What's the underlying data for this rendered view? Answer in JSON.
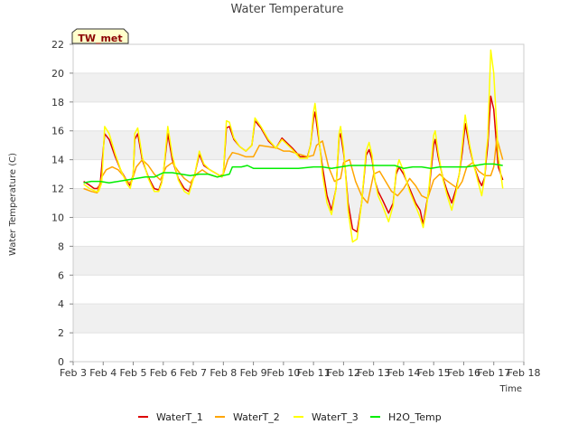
{
  "chart_data": {
    "type": "line",
    "title": "Water Temperature",
    "xlabel": "Time",
    "ylabel": "Water Temperature (C)",
    "site_label": "TW_met",
    "xlim": [
      3,
      18
    ],
    "ylim": [
      0,
      22
    ],
    "x_ticks": [
      3,
      4,
      5,
      6,
      7,
      8,
      9,
      10,
      11,
      12,
      13,
      14,
      15,
      16,
      17,
      18
    ],
    "x_tick_labels": [
      "Feb 3",
      "Feb 4",
      "Feb 5",
      "Feb 6",
      "Feb 7",
      "Feb 8",
      "Feb 9",
      "Feb 10",
      "Feb 11",
      "Feb 12",
      "Feb 13",
      "Feb 14",
      "Feb 15",
      "Feb 16",
      "Feb 17",
      "Feb 18"
    ],
    "y_ticks": [
      0,
      2,
      4,
      6,
      8,
      10,
      12,
      14,
      16,
      18,
      20,
      22
    ],
    "y_tick_labels": [
      "0",
      "2",
      "4",
      "6",
      "8",
      "10",
      "12",
      "14",
      "16",
      "18",
      "20",
      "22"
    ],
    "grid": "horizontal bands",
    "legend_position": "bottom",
    "series": [
      {
        "name": "WaterT_1",
        "color": "#dd0000",
        "x": [
          3.35,
          3.5,
          3.7,
          3.8,
          3.9,
          4.05,
          4.2,
          4.4,
          4.6,
          4.8,
          4.9,
          5.0,
          5.05,
          5.15,
          5.3,
          5.5,
          5.7,
          5.85,
          5.95,
          6.0,
          6.15,
          6.3,
          6.5,
          6.7,
          6.85,
          7.05,
          7.2,
          7.35,
          7.55,
          7.8,
          7.95,
          8.0,
          8.1,
          8.2,
          8.35,
          8.55,
          8.75,
          8.95,
          9.05,
          9.25,
          9.5,
          9.75,
          9.95,
          10.05,
          10.3,
          10.55,
          10.8,
          10.9,
          11.0,
          11.05,
          11.15,
          11.3,
          11.45,
          11.6,
          11.75,
          11.85,
          11.9,
          12.0,
          12.05,
          12.15,
          12.3,
          12.45,
          12.6,
          12.75,
          12.85,
          12.95,
          13.05,
          13.15,
          13.3,
          13.5,
          13.65,
          13.75,
          13.85,
          14.0,
          14.2,
          14.4,
          14.55,
          14.65,
          14.75,
          14.85,
          15.0,
          15.05,
          15.15,
          15.3,
          15.45,
          15.6,
          15.75,
          15.85,
          15.95,
          16.05,
          16.2,
          16.35,
          16.5,
          16.6,
          16.7,
          16.75,
          16.8,
          16.9,
          17.0,
          17.15,
          17.3
        ],
        "values": [
          12.5,
          12.3,
          12.0,
          12.0,
          12.3,
          15.8,
          15.4,
          14.2,
          13.2,
          12.5,
          12.2,
          13.0,
          15.4,
          15.8,
          14.0,
          12.8,
          12.0,
          11.9,
          12.5,
          13.0,
          15.8,
          14.0,
          12.7,
          12.0,
          11.8,
          13.0,
          14.4,
          13.6,
          13.3,
          13.0,
          12.8,
          13.0,
          16.2,
          16.3,
          15.4,
          14.9,
          14.6,
          15.0,
          16.7,
          16.2,
          15.3,
          14.8,
          15.5,
          15.3,
          14.8,
          14.2,
          14.2,
          15.0,
          16.8,
          17.3,
          15.8,
          13.5,
          11.5,
          10.5,
          12.0,
          15.5,
          15.8,
          14.5,
          13.5,
          11.0,
          9.2,
          9.0,
          11.0,
          14.3,
          14.7,
          14.0,
          12.5,
          11.8,
          11.2,
          10.3,
          11.0,
          13.0,
          13.5,
          13.0,
          12.0,
          11.0,
          10.5,
          9.5,
          10.8,
          12.0,
          15.0,
          15.4,
          14.2,
          12.8,
          11.8,
          11.0,
          12.0,
          13.0,
          14.5,
          16.5,
          14.8,
          13.5,
          12.6,
          12.2,
          12.8,
          14.0,
          15.0,
          18.4,
          17.5,
          13.5,
          12.6
        ]
      },
      {
        "name": "WaterT_2",
        "color": "#ffa500",
        "x": [
          3.35,
          3.6,
          3.8,
          3.95,
          4.1,
          4.3,
          4.5,
          4.7,
          4.85,
          4.95,
          5.1,
          5.3,
          5.5,
          5.7,
          5.9,
          6.1,
          6.3,
          6.5,
          6.7,
          6.9,
          7.1,
          7.3,
          7.5,
          7.8,
          8.0,
          8.15,
          8.3,
          8.5,
          8.75,
          9.0,
          9.2,
          9.5,
          9.8,
          10.0,
          10.2,
          10.5,
          10.8,
          11.0,
          11.1,
          11.3,
          11.5,
          11.7,
          11.9,
          12.0,
          12.2,
          12.4,
          12.6,
          12.8,
          13.0,
          13.2,
          13.4,
          13.6,
          13.8,
          14.0,
          14.2,
          14.4,
          14.6,
          14.8,
          15.0,
          15.2,
          15.4,
          15.6,
          15.8,
          15.95,
          16.1,
          16.3,
          16.5,
          16.7,
          16.9,
          17.0,
          17.1,
          17.3
        ],
        "values": [
          12.0,
          11.8,
          11.7,
          12.8,
          13.3,
          13.5,
          13.3,
          12.8,
          12.4,
          12.5,
          13.5,
          14.0,
          13.6,
          13.0,
          12.6,
          13.5,
          13.8,
          13.2,
          12.7,
          12.4,
          13.0,
          13.3,
          13.0,
          12.8,
          13.0,
          14.0,
          14.5,
          14.4,
          14.2,
          14.2,
          15.0,
          14.9,
          14.8,
          14.6,
          14.6,
          14.4,
          14.2,
          14.3,
          15.0,
          15.3,
          13.5,
          12.5,
          12.7,
          13.8,
          14.0,
          12.5,
          11.5,
          11.0,
          13.0,
          13.2,
          12.5,
          11.8,
          11.5,
          12.0,
          12.7,
          12.2,
          11.5,
          11.3,
          12.6,
          13.0,
          12.6,
          12.3,
          12.0,
          12.5,
          13.5,
          13.8,
          13.2,
          12.9,
          12.9,
          13.5,
          15.5,
          14.0
        ]
      },
      {
        "name": "WaterT_3",
        "color": "#ffff00",
        "x": [
          3.35,
          3.55,
          3.75,
          3.85,
          3.95,
          4.05,
          4.2,
          4.4,
          4.6,
          4.8,
          4.9,
          5.0,
          5.05,
          5.15,
          5.3,
          5.5,
          5.7,
          5.85,
          5.95,
          6.0,
          6.15,
          6.3,
          6.5,
          6.7,
          6.85,
          7.05,
          7.2,
          7.35,
          7.55,
          7.8,
          7.95,
          8.0,
          8.1,
          8.2,
          8.35,
          8.55,
          8.75,
          8.95,
          9.05,
          9.25,
          9.5,
          9.75,
          9.95,
          10.05,
          10.3,
          10.55,
          10.8,
          10.9,
          11.0,
          11.05,
          11.15,
          11.3,
          11.45,
          11.6,
          11.75,
          11.85,
          11.9,
          12.0,
          12.05,
          12.15,
          12.3,
          12.45,
          12.6,
          12.75,
          12.85,
          12.95,
          13.05,
          13.15,
          13.3,
          13.5,
          13.65,
          13.75,
          13.85,
          14.0,
          14.2,
          14.4,
          14.55,
          14.65,
          14.75,
          14.85,
          15.0,
          15.05,
          15.15,
          15.3,
          15.45,
          15.6,
          15.75,
          15.85,
          15.95,
          16.05,
          16.2,
          16.35,
          16.5,
          16.6,
          16.7,
          16.75,
          16.8,
          16.9,
          17.0,
          17.15,
          17.3
        ],
        "values": [
          12.3,
          12.0,
          11.8,
          11.8,
          12.4,
          16.3,
          15.8,
          14.4,
          13.2,
          12.3,
          12.0,
          13.0,
          15.8,
          16.2,
          14.2,
          12.7,
          11.8,
          11.8,
          12.4,
          13.0,
          16.3,
          14.3,
          12.6,
          11.8,
          11.6,
          13.0,
          14.6,
          13.7,
          13.3,
          13.0,
          12.8,
          13.0,
          16.7,
          16.6,
          15.5,
          14.9,
          14.6,
          15.0,
          16.9,
          16.3,
          15.4,
          14.8,
          15.4,
          15.2,
          14.7,
          14.1,
          14.1,
          15.0,
          17.3,
          17.9,
          16.2,
          13.0,
          11.0,
          10.2,
          12.0,
          15.8,
          16.3,
          14.8,
          13.5,
          10.5,
          8.3,
          8.5,
          11.0,
          14.6,
          15.2,
          14.3,
          12.5,
          11.5,
          10.8,
          9.7,
          10.8,
          13.2,
          14.0,
          13.2,
          11.8,
          10.8,
          10.0,
          9.3,
          10.5,
          12.2,
          15.7,
          16.0,
          14.5,
          12.7,
          11.5,
          10.5,
          11.8,
          13.0,
          15.0,
          17.1,
          15.0,
          13.5,
          12.3,
          11.5,
          12.8,
          14.5,
          15.5,
          21.6,
          20.0,
          14.3,
          12.0
        ]
      },
      {
        "name": "H2O_Temp",
        "color": "#00ee00",
        "x": [
          3.35,
          3.6,
          3.9,
          4.2,
          4.5,
          4.8,
          5.1,
          5.4,
          5.7,
          6.0,
          6.3,
          6.6,
          6.9,
          7.2,
          7.5,
          7.8,
          8.0,
          8.2,
          8.3,
          8.6,
          8.8,
          9.0,
          9.5,
          10.0,
          10.5,
          11.0,
          11.3,
          11.6,
          11.9,
          12.2,
          12.5,
          12.8,
          13.1,
          13.4,
          13.7,
          14.0,
          14.3,
          14.6,
          14.9,
          15.2,
          15.5,
          15.8,
          16.1,
          16.4,
          16.7,
          17.0,
          17.3
        ],
        "values": [
          12.4,
          12.5,
          12.5,
          12.4,
          12.5,
          12.6,
          12.7,
          12.8,
          12.8,
          13.1,
          13.1,
          13.0,
          12.9,
          13.0,
          13.0,
          12.8,
          12.9,
          13.0,
          13.5,
          13.5,
          13.6,
          13.4,
          13.4,
          13.4,
          13.4,
          13.5,
          13.5,
          13.4,
          13.5,
          13.6,
          13.6,
          13.6,
          13.6,
          13.6,
          13.6,
          13.4,
          13.5,
          13.5,
          13.4,
          13.5,
          13.5,
          13.5,
          13.5,
          13.6,
          13.7,
          13.7,
          13.6
        ]
      }
    ]
  }
}
